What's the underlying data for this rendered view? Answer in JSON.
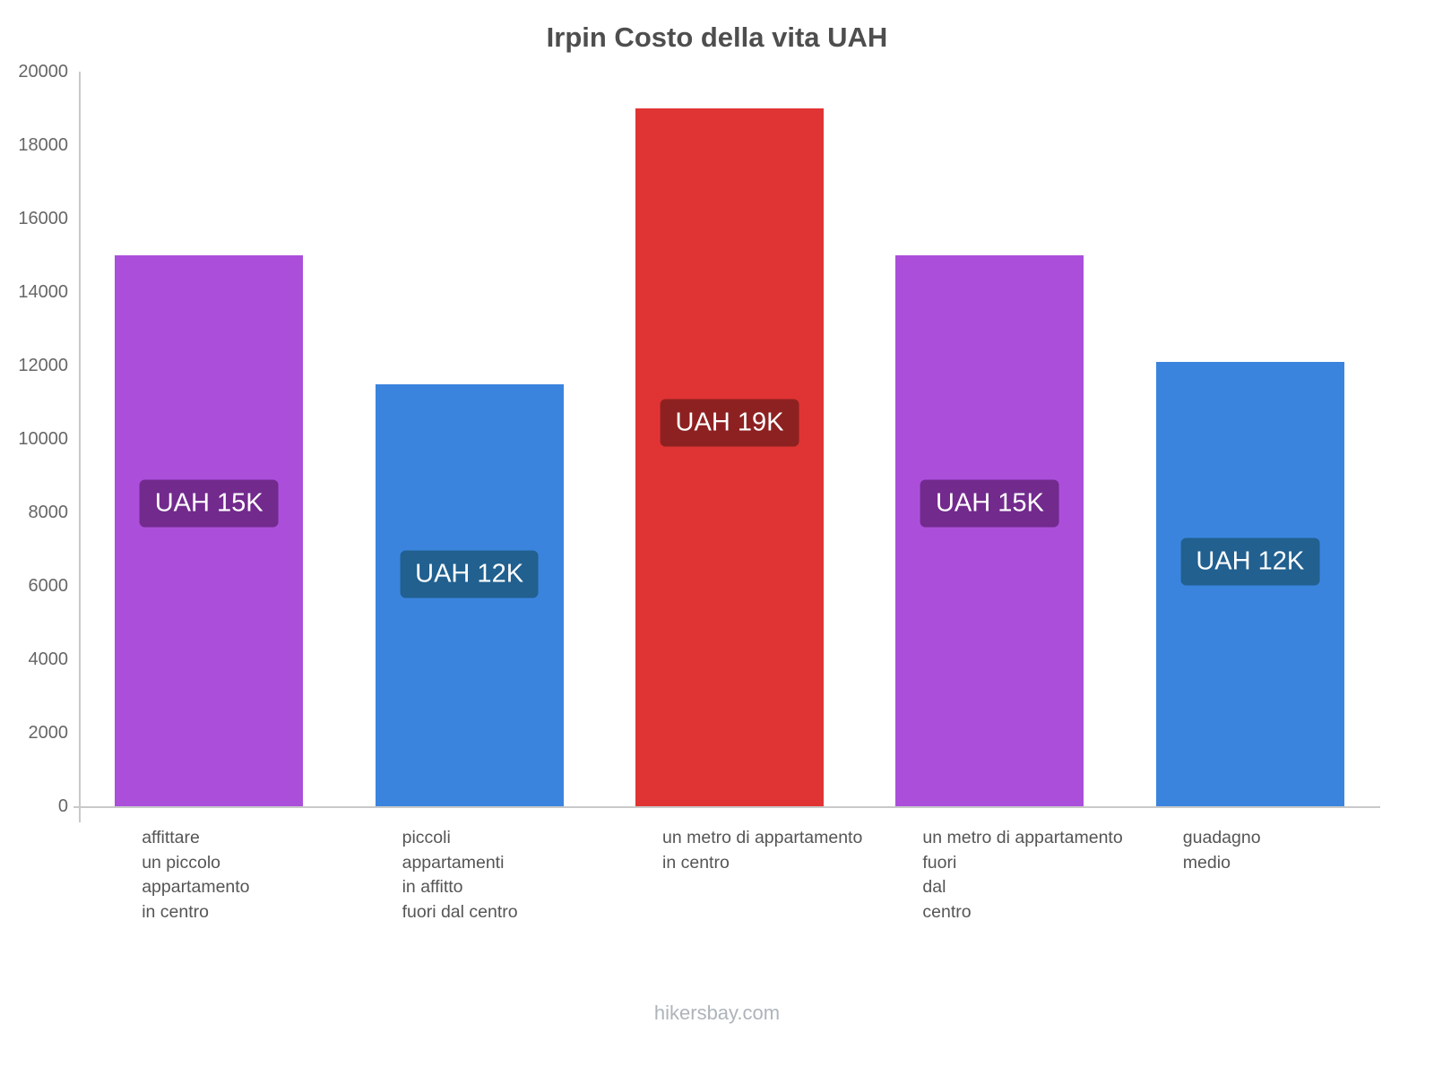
{
  "footer": "hikersbay.com",
  "chart_data": {
    "type": "bar",
    "title": "Irpin Costo della vita UAH",
    "xlabel": "",
    "ylabel": "",
    "ylim": [
      0,
      20000
    ],
    "ytick_step": 2000,
    "grid": false,
    "legend": null,
    "categories": [
      "affittare un piccolo appartamento in centro",
      "piccoli appartamenti in affitto fuori dal centro",
      "un metro di appartamento in centro",
      "un metro di appartamento fuori dal centro",
      "guadagno medio"
    ],
    "category_lines": [
      [
        "affittare",
        "un piccolo",
        "appartamento",
        "in centro"
      ],
      [
        "piccoli",
        "appartamenti",
        "in affitto",
        "fuori dal centro"
      ],
      [
        "un metro di appartamento",
        "in centro"
      ],
      [
        "un metro di appartamento",
        "fuori",
        "dal",
        "centro"
      ],
      [
        "guadagno",
        "medio"
      ]
    ],
    "values": [
      15000,
      11500,
      19000,
      15000,
      12100
    ],
    "value_labels": [
      "UAH 15K",
      "UAH 12K",
      "UAH 19K",
      "UAH 15K",
      "UAH 12K"
    ],
    "bar_colors": [
      "#ab4fdb",
      "#3b84de",
      "#e03434",
      "#ab4fdb",
      "#3b84de"
    ],
    "label_bg_colors": [
      "#722a8d",
      "#21608f",
      "#8d2121",
      "#722a8d",
      "#21608f"
    ]
  }
}
